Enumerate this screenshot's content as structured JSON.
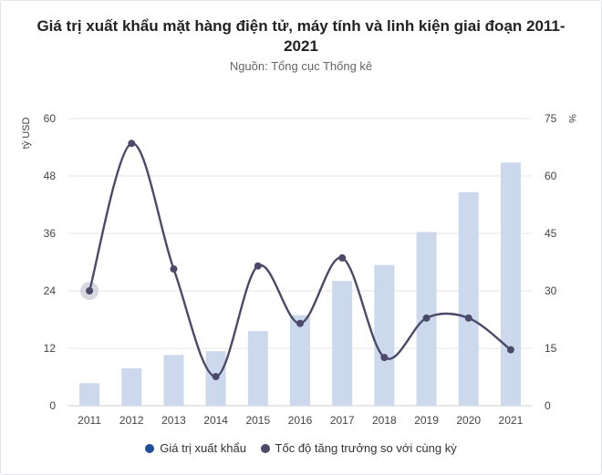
{
  "chart_data": {
    "type": "bar",
    "title": "Giá trị xuất khẩu mặt hàng điện tử, máy tính và linh kiện giai đoạn 2011-2021",
    "subtitle": "Nguồn: Tổng cục Thống kê",
    "categories": [
      "2011",
      "2012",
      "2013",
      "2014",
      "2015",
      "2016",
      "2017",
      "2018",
      "2019",
      "2020",
      "2021"
    ],
    "series": [
      {
        "name": "Giá trị xuất khẩu",
        "type": "bar",
        "axis": "left",
        "color": "#ccd8ec",
        "values": [
          4.7,
          7.8,
          10.6,
          11.4,
          15.6,
          18.9,
          26.1,
          29.4,
          36.3,
          44.6,
          50.8
        ]
      },
      {
        "name": "Tốc độ tăng trưởng so với cùng kỳ",
        "type": "line",
        "axis": "right",
        "color": "#4c4a6b",
        "values": [
          30,
          68.5,
          35.7,
          7.6,
          36.5,
          21.5,
          38.6,
          12.6,
          22.9,
          22.9,
          14.6
        ]
      }
    ],
    "ylabel_left": "tỷ USD",
    "ylabel_right": "%",
    "ylim_left": [
      0,
      60
    ],
    "ylim_right": [
      0,
      75
    ],
    "yticks_left": [
      "0",
      "12",
      "24",
      "36",
      "48",
      "60"
    ],
    "yticks_right": [
      "0",
      "15",
      "30",
      "45",
      "60",
      "75"
    ],
    "grid": true,
    "legend": "bottom",
    "legend_colors": [
      "#1f4e9c",
      "#4c4a6b"
    ]
  }
}
